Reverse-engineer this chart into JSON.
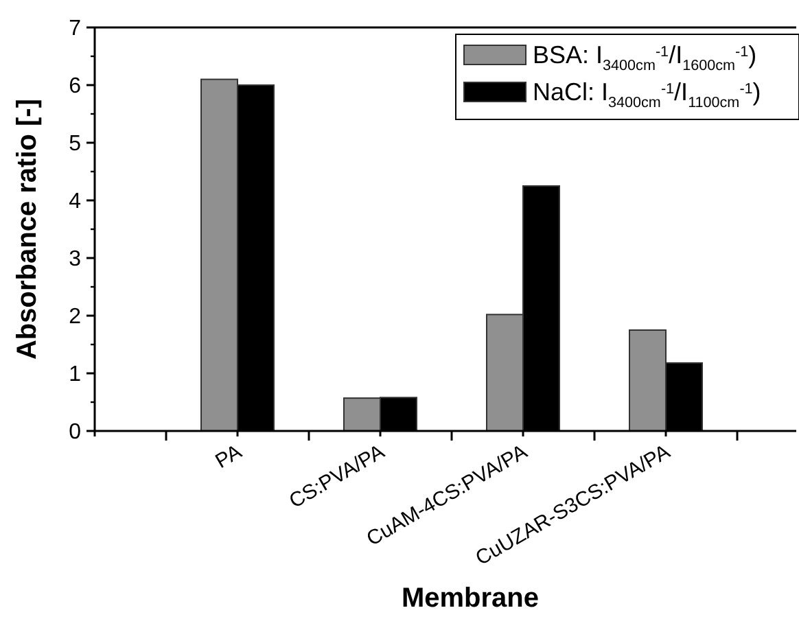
{
  "chart_data": {
    "type": "bar",
    "xlabel": "Membrane",
    "ylabel": "Absorbance ratio [-]",
    "categories": [
      "PA",
      "CS:PVA/PA",
      "CuAM-4CS:PVA/PA",
      "CuUZAR-S3CS:PVA/PA"
    ],
    "series": [
      {
        "name": "BSA: I$_{3400cm}$$^{-1}$/I$_{1600cm}$$^{-1}$)",
        "color": "#909090",
        "values": [
          6.1,
          0.57,
          2.02,
          1.75
        ]
      },
      {
        "name": "NaCl: I$_{3400cm}$$^{-1}$/I$_{1100cm}$$^{-1}$)",
        "color": "#000000",
        "values": [
          6.0,
          0.58,
          4.25,
          1.18
        ]
      }
    ],
    "ylim": [
      0,
      7
    ],
    "yticks": [
      0,
      1,
      2,
      3,
      4,
      5,
      6,
      7
    ],
    "legend": "top right",
    "grid": false
  }
}
